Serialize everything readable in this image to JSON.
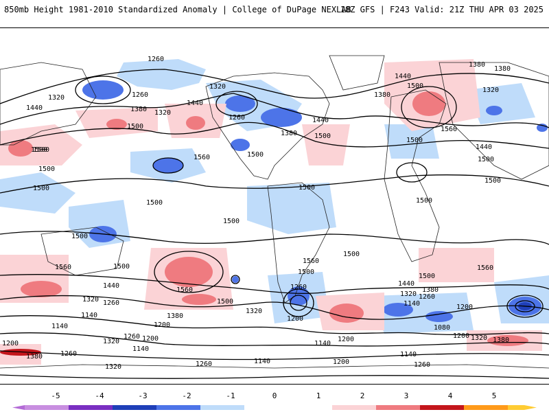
{
  "header": {
    "title": "850mb Height 1981-2010 Standardized Anomaly | College of DuPage NEXLAB",
    "run_info": "18Z GFS | F243 Valid: 21Z THU APR 03 2025"
  },
  "colors": {
    "anom_neg5": "#b36bd6",
    "anom_neg4": "#5e1ab5",
    "anom_neg3": "#1f3fb8",
    "anom_neg2": "#4d74e8",
    "anom_neg1": "#bfdcfa",
    "anom_0": "#ffffff",
    "anom_pos1": "#fbd3d6",
    "anom_pos2": "#ef7b80",
    "anom_pos3": "#c4161c",
    "anom_pos4": "#ff9a1a",
    "anom_pos5": "#ffcc33",
    "contour": "#000000",
    "coast": "#222222"
  },
  "legend": {
    "ticks": [
      "-5",
      "-4",
      "-3",
      "-2",
      "-1",
      "0",
      "1",
      "2",
      "3",
      "4",
      "5"
    ]
  },
  "contour_labels": [
    "1260",
    "1320",
    "1440",
    "1380",
    "1500",
    "1560",
    "1140",
    "1200",
    "1080"
  ]
}
